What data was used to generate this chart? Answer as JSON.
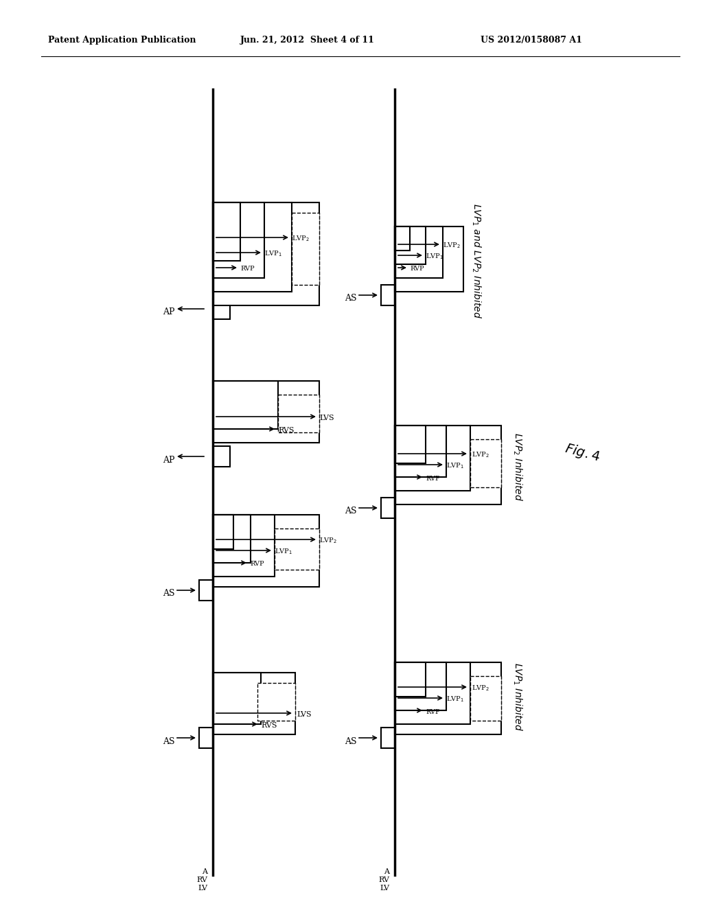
{
  "title_left": "Patent Application Publication",
  "title_center": "Jun. 21, 2012  Sheet 4 of 11",
  "title_right": "US 2012/0158087 A1",
  "fig_label": "Fig. 4",
  "background": "#ffffff"
}
